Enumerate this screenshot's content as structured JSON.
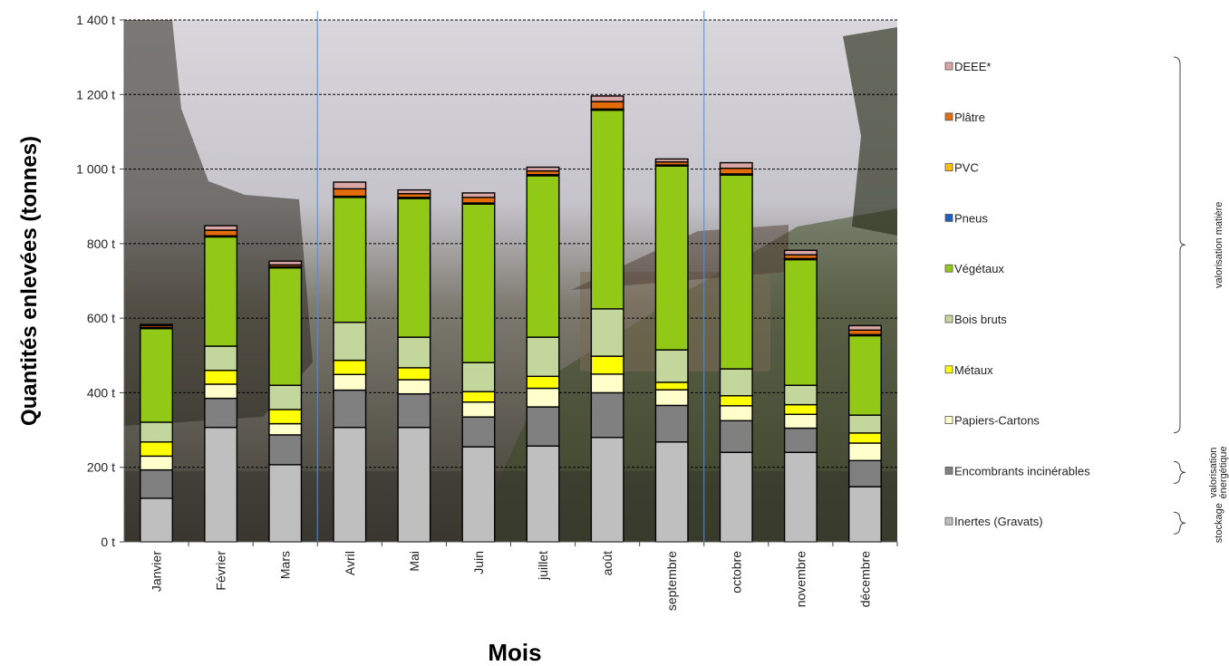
{
  "chart_data": {
    "type": "bar",
    "stacked": true,
    "ylabel": "Quantités enlevées (tonnes)",
    "xlabel": "Mois",
    "ylim": [
      0,
      1400
    ],
    "yticks": [
      0,
      200,
      400,
      600,
      800,
      1000,
      1200,
      1400
    ],
    "ytick_labels": [
      "0 t",
      "200 t",
      "400 t",
      "600 t",
      "800 t",
      "1 000 t",
      "1 200 t",
      "1 400 t"
    ],
    "grid": true,
    "legend_position": "right",
    "categories": [
      "Janvier",
      "Février",
      "Mars",
      "Avril",
      "Mai",
      "Juin",
      "juillet",
      "août",
      "septembre",
      "octobre",
      "novembre",
      "décembre"
    ],
    "series": [
      {
        "name": "Inertes (Gravats)",
        "color": "#bfbfbf",
        "values": [
          117,
          307,
          207,
          307,
          307,
          255,
          257,
          280,
          268,
          240,
          240,
          148
        ]
      },
      {
        "name": "Encombrants incinérables",
        "color": "#808080",
        "values": [
          76,
          78,
          80,
          100,
          90,
          80,
          105,
          120,
          98,
          85,
          65,
          70
        ]
      },
      {
        "name": "Papiers-Cartons",
        "color": "#ffffcc",
        "values": [
          37,
          38,
          30,
          42,
          38,
          40,
          50,
          50,
          42,
          40,
          37,
          47
        ]
      },
      {
        "name": "Métaux",
        "color": "#ffff00",
        "values": [
          38,
          37,
          38,
          38,
          32,
          28,
          32,
          48,
          20,
          27,
          26,
          27
        ]
      },
      {
        "name": "Bois bruts",
        "color": "#c3d69b",
        "values": [
          53,
          65,
          65,
          102,
          82,
          78,
          105,
          127,
          87,
          72,
          52,
          48
        ]
      },
      {
        "name": "Végétaux",
        "color": "#92c816",
        "values": [
          251,
          293,
          315,
          335,
          372,
          425,
          433,
          533,
          493,
          520,
          337,
          213
        ]
      },
      {
        "name": "Pneus",
        "color": "#1f5fbf",
        "values": [
          1,
          1,
          1,
          1,
          1,
          1,
          1,
          1,
          1,
          1,
          1,
          1
        ]
      },
      {
        "name": "PVC",
        "color": "#ffc000",
        "values": [
          2,
          2,
          2,
          2,
          2,
          2,
          2,
          2,
          2,
          2,
          2,
          2
        ]
      },
      {
        "name": "Plâtre",
        "color": "#e46c0a",
        "values": [
          5,
          15,
          5,
          20,
          10,
          15,
          10,
          20,
          8,
          15,
          10,
          12
        ]
      },
      {
        "name": "DEEE*",
        "color": "#d9a5a5",
        "values": [
          3,
          12,
          10,
          18,
          10,
          12,
          10,
          15,
          8,
          15,
          12,
          12
        ]
      }
    ],
    "legend_order": [
      "DEEE*",
      "Plâtre",
      "PVC",
      "Pneus",
      "Végétaux",
      "Bois bruts",
      "Métaux",
      "Papiers-Cartons",
      "Encombrants incinérables",
      "Inertes (Gravats)"
    ],
    "groups": [
      {
        "label": "valorisation matière",
        "from": "DEEE*",
        "to": "Papiers-Cartons"
      },
      {
        "label_lines": [
          "valorisation",
          "énergétique"
        ],
        "from": "Encombrants incinérables",
        "to": "Encombrants incinérables"
      },
      {
        "label": "stockage",
        "from": "Inertes (Gravats)",
        "to": "Inertes (Gravats)"
      }
    ]
  }
}
